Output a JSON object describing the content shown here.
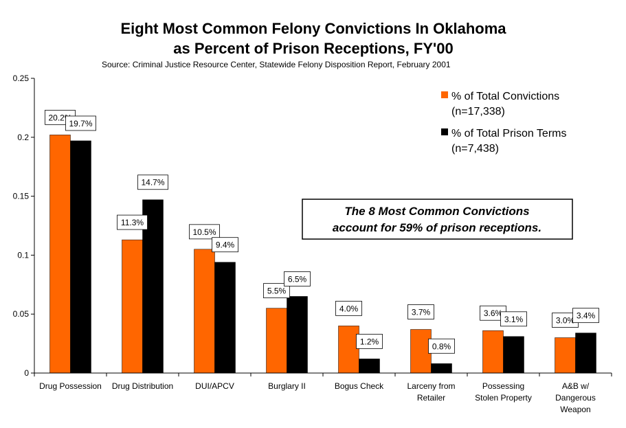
{
  "colors": {
    "orange": "#FF6600",
    "black": "#000000",
    "axis": "#000000",
    "background": "#FFFFFF"
  },
  "chart_data": {
    "type": "bar",
    "title_lines": [
      "Eight Most Common Felony Convictions In Oklahoma",
      "as Percent of Prison Receptions, FY'00"
    ],
    "subtitle": "Source: Criminal Justice Resource Center, Statewide Felony Disposition Report, February 2001",
    "xlabel": "",
    "ylabel": "",
    "ylim": [
      0,
      0.25
    ],
    "yticks": [
      "0",
      "0.05",
      "0.1",
      "0.15",
      "0.2",
      "0.25"
    ],
    "ytick_values": [
      0,
      0.05,
      0.1,
      0.15,
      0.2,
      0.25
    ],
    "grid": false,
    "legend_position": "top-right",
    "categories": [
      [
        "Drug Possession"
      ],
      [
        "Drug Distribution"
      ],
      [
        "DUI/APCV"
      ],
      [
        "Burglary II"
      ],
      [
        "Bogus Check"
      ],
      [
        "Larceny from",
        "Retailer"
      ],
      [
        "Possessing",
        "Stolen Property"
      ],
      [
        "A&B w/",
        "Dangerous",
        "Weapon"
      ]
    ],
    "series": [
      {
        "name": "% of Total Convictions (n=17,338)",
        "legend_lines": [
          "% of Total Convictions",
          "(n=17,338)"
        ],
        "color": "#FF6600",
        "values": [
          0.202,
          0.113,
          0.105,
          0.055,
          0.04,
          0.037,
          0.036,
          0.03
        ],
        "labels": [
          "20.2%",
          "11.3%",
          "10.5%",
          "5.5%",
          "4.0%",
          "3.7%",
          "3.6%",
          "3.0%"
        ]
      },
      {
        "name": "% of Total Prison Terms (n=7,438)",
        "legend_lines": [
          "% of Total Prison Terms",
          "(n=7,438)"
        ],
        "color": "#000000",
        "values": [
          0.197,
          0.147,
          0.094,
          0.065,
          0.012,
          0.008,
          0.031,
          0.034
        ],
        "labels": [
          "19.7%",
          "14.7%",
          "9.4%",
          "6.5%",
          "1.2%",
          "0.8%",
          "3.1%",
          "3.4%"
        ]
      }
    ],
    "annotation_lines": [
      "The 8 Most Common Convictions",
      "account for 59% of prison receptions."
    ]
  }
}
